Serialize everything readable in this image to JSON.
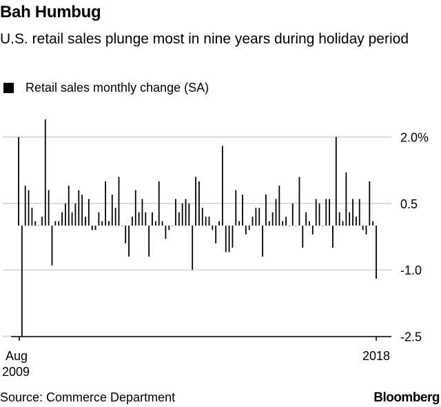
{
  "header": {
    "title": "Bah Humbug",
    "subtitle": "U.S. retail sales plunge most in nine years during holiday period"
  },
  "legend": {
    "label": "Retail sales monthly change (SA)",
    "color": "#000000"
  },
  "footer": {
    "source": "Source: Commerce Department",
    "brand": "Bloomberg"
  },
  "chart_data": {
    "type": "bar",
    "title": "Bah Humbug",
    "subtitle": "U.S. retail sales plunge most in nine years during holiday period",
    "series": [
      {
        "name": "Retail sales monthly change (SA)",
        "values": [
          2.0,
          -2.5,
          0.9,
          0.8,
          0.4,
          0.1,
          0.0,
          0.2,
          2.4,
          0.8,
          -0.9,
          0.1,
          0.1,
          0.3,
          0.5,
          0.9,
          0.3,
          0.5,
          0.8,
          0.7,
          0.2,
          0.6,
          -0.1,
          -0.1,
          0.3,
          0.1,
          1.0,
          0.1,
          0.7,
          0.4,
          1.1,
          0.0,
          -0.4,
          -0.7,
          0.2,
          0.8,
          0.3,
          0.6,
          0.3,
          -0.7,
          0.3,
          0.1,
          1.0,
          0.1,
          -0.3,
          -0.1,
          0.0,
          0.6,
          0.3,
          0.5,
          0.6,
          0.5,
          -1.0,
          1.1,
          1.0,
          0.4,
          0.2,
          0.2,
          -0.1,
          -0.4,
          0.1,
          1.8,
          -0.6,
          -0.6,
          -0.5,
          0.8,
          0.1,
          0.7,
          -0.2,
          -0.1,
          0.2,
          0.4,
          0.4,
          -0.7,
          0.7,
          0.1,
          0.3,
          0.6,
          0.9,
          0.1,
          0.2,
          0.0,
          0.5,
          0.0,
          1.1,
          -0.5,
          0.3,
          0.1,
          -0.2,
          0.6,
          0.5,
          0.0,
          0.6,
          0.6,
          -0.5,
          2.0,
          0.3,
          0.1,
          1.2,
          0.3,
          0.6,
          0.2,
          0.6,
          -0.1,
          -0.2,
          1.0,
          0.1,
          -1.2
        ]
      }
    ],
    "x_start": "Aug 2009",
    "x_end": "2018",
    "x_tick_labels": [
      "Aug 2009",
      "2018"
    ],
    "y_ticks": [
      "2.0%",
      "0.5",
      "-1.0",
      "-2.5"
    ],
    "ylim": [
      -2.5,
      2.5
    ],
    "grid": true,
    "legend_position": "top-left"
  }
}
